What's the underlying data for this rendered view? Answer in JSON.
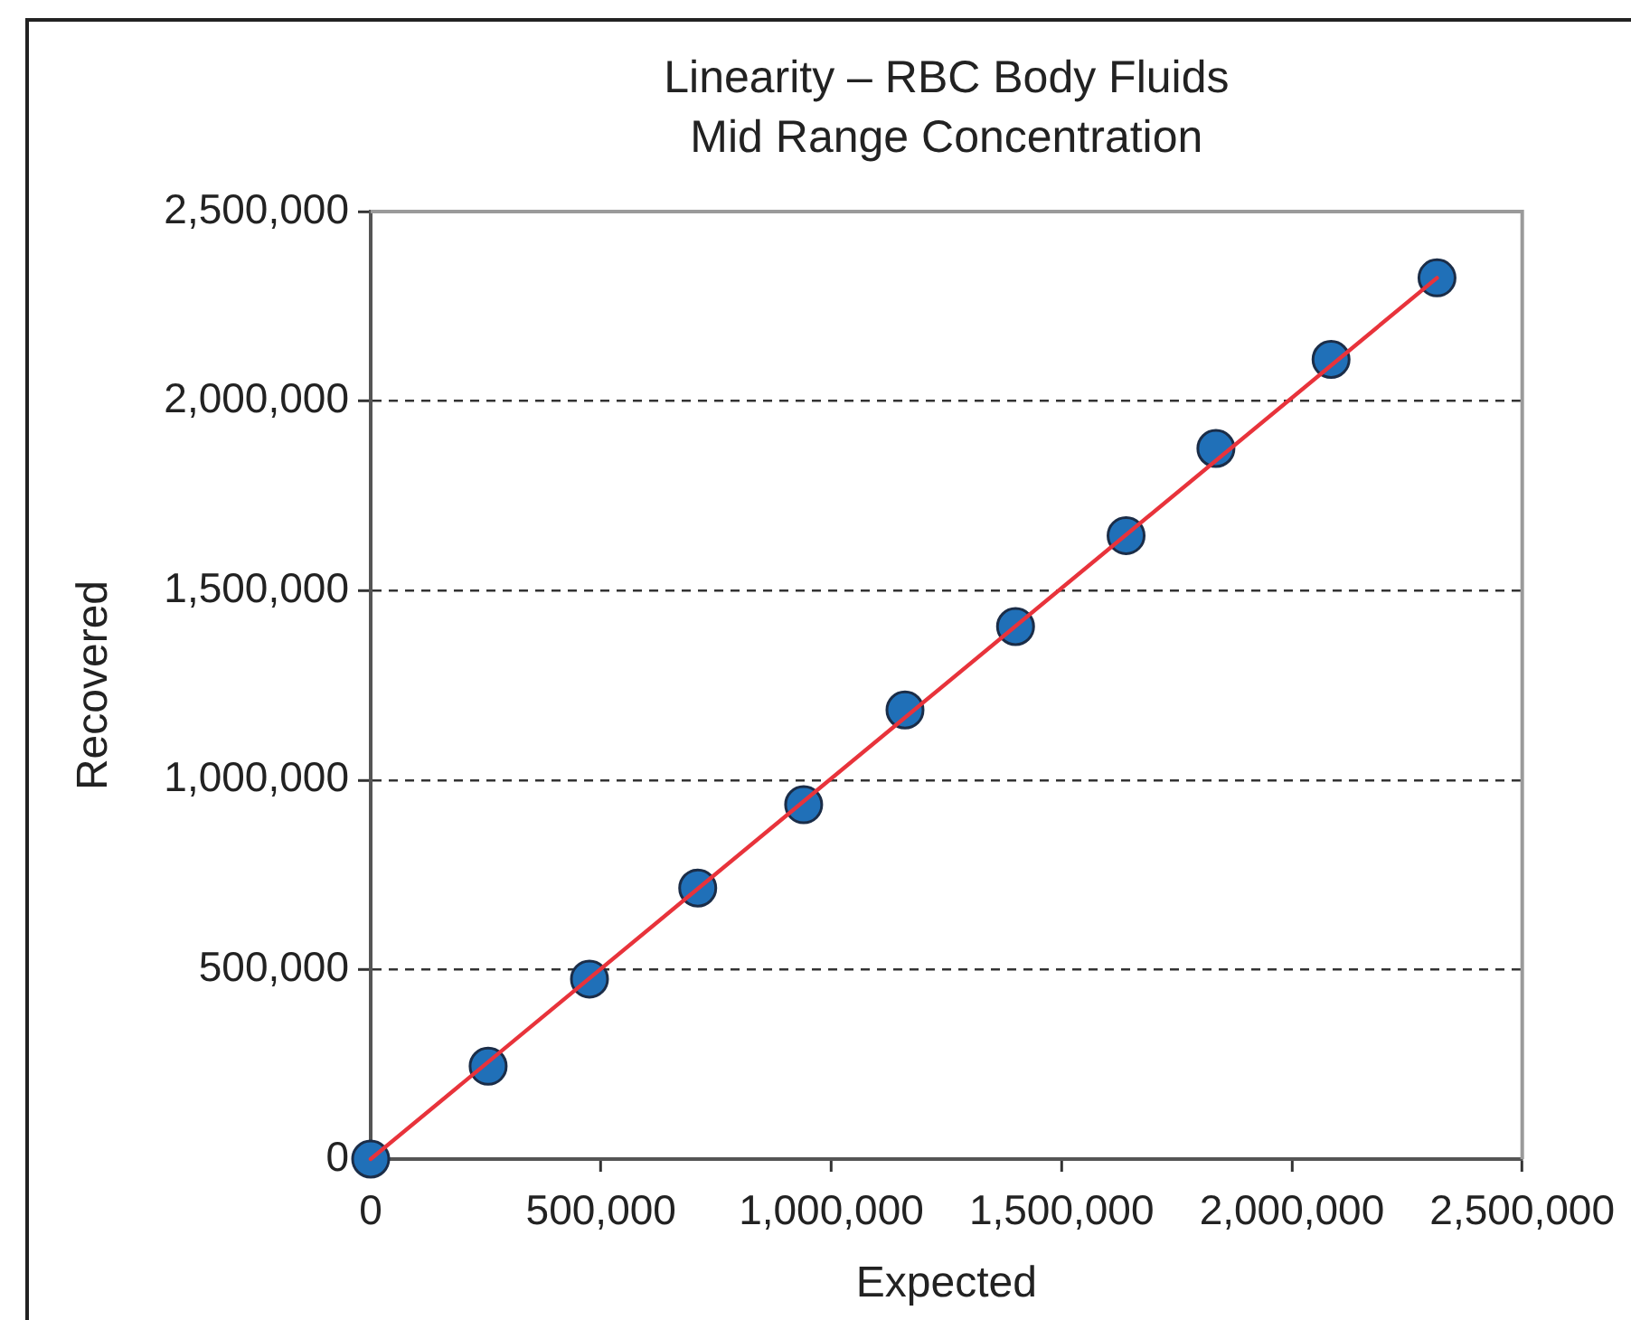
{
  "chart_data": {
    "type": "scatter",
    "title": "Linearity – RBC Body Fluids",
    "subtitle": "Mid Range Concentration",
    "xlabel": "Expected",
    "ylabel": "Recovered",
    "series": [
      {
        "color": "#2070b8",
        "marker": "circle",
        "x": [
          0,
          255000,
          475000,
          710000,
          940000,
          1160000,
          1400000,
          1640000,
          1835000,
          2085000,
          2315000
        ],
        "values": [
          0,
          245000,
          475000,
          715000,
          935000,
          1185000,
          1405000,
          1645000,
          1875000,
          2110000,
          2325000
        ]
      },
      {
        "type": "line",
        "color": "#e8333b",
        "marker": "none",
        "x": [
          0,
          2315000
        ],
        "values": [
          0,
          2325000
        ]
      }
    ],
    "xlim": [
      0,
      2500000
    ],
    "ylim": [
      0,
      2500000
    ],
    "xticks": [
      0,
      {
        "value": 500000,
        "label": "500,000"
      },
      {
        "value": 1000000,
        "label": "1,000,000"
      },
      {
        "value": 1500000,
        "label": "1,500,000"
      },
      {
        "value": 2000000,
        "label": "2,000,000"
      },
      {
        "value": 2500000,
        "label": "2,500,000"
      }
    ],
    "yticks": [
      0,
      {
        "value": 500000,
        "label": "500,000"
      },
      {
        "value": 1000000,
        "label": "1,000,000"
      },
      {
        "value": 1500000,
        "label": "1,500,000"
      },
      {
        "value": 2000000,
        "label": "2,000,000"
      },
      {
        "value": 2500000,
        "label": "2,500,000"
      }
    ],
    "grid": "y"
  }
}
